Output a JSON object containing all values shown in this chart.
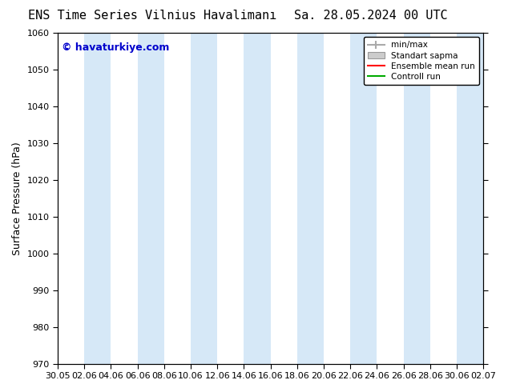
{
  "title_left": "ENS Time Series Vilnius Havalimanı",
  "title_right": "Sa. 28.05.2024 00 UTC",
  "ylabel": "Surface Pressure (hPa)",
  "ylim": [
    970,
    1060
  ],
  "yticks": [
    970,
    980,
    990,
    1000,
    1010,
    1020,
    1030,
    1040,
    1050,
    1060
  ],
  "watermark": "© havaturkiye.com",
  "watermark_color": "#0000cc",
  "x_tick_labels": [
    "30.05",
    "02.06",
    "04.06",
    "06.06",
    "08.06",
    "10.06",
    "12.06",
    "14.06",
    "16.06",
    "18.06",
    "20.06",
    "22.06",
    "24.06",
    "26.06",
    "28.06",
    "30.06",
    "02.07"
  ],
  "band_color": "#d6e8f7",
  "background_color": "#ffffff",
  "legend_labels": [
    "min/max",
    "Standart sapma",
    "Ensemble mean run",
    "Controll run"
  ],
  "legend_colors": [
    "#aaaaaa",
    "#cccccc",
    "#ff0000",
    "#00aa00"
  ],
  "title_fontsize": 11,
  "axis_label_fontsize": 9,
  "tick_fontsize": 8
}
